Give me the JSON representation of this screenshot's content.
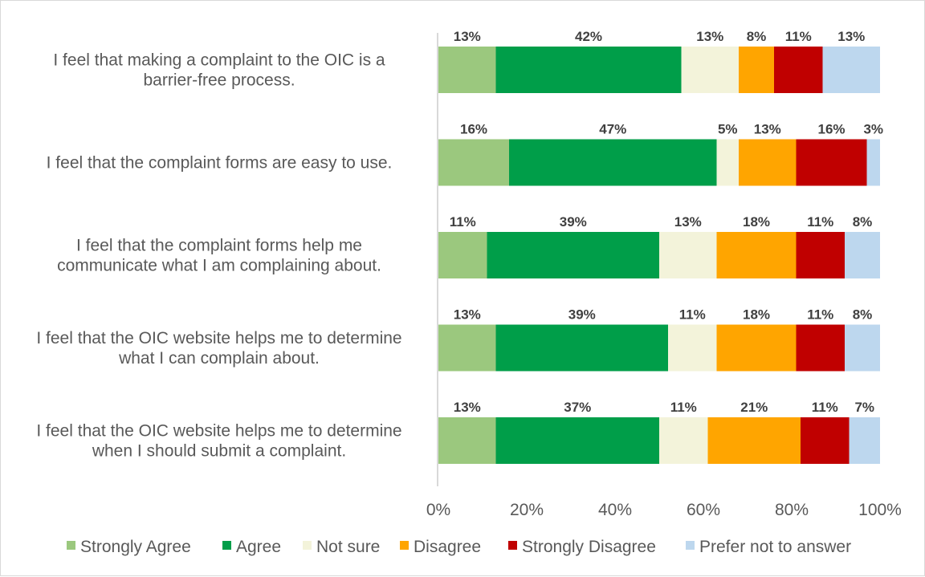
{
  "chart_data": {
    "type": "bar",
    "orientation": "horizontal",
    "stacked": "percent",
    "title": "",
    "xlabel": "",
    "ylabel": "",
    "xlim": [
      0,
      100
    ],
    "x_ticks": [
      "0%",
      "20%",
      "40%",
      "60%",
      "80%",
      "100%"
    ],
    "grid": false,
    "legend_position": "bottom",
    "categories": [
      [
        "I feel that making a complaint to the OIC is a",
        "barrier-free process."
      ],
      [
        "I feel that the complaint forms are easy to use."
      ],
      [
        "I feel that the complaint forms help me",
        "communicate what I am complaining about."
      ],
      [
        "I feel that the OIC website helps me to determine",
        "what I can complain about."
      ],
      [
        "I feel that the OIC website helps me to determine",
        "when I should submit a complaint."
      ]
    ],
    "series": [
      {
        "name": "Strongly Agree",
        "color": "#9BC87E",
        "values": [
          13,
          16,
          11,
          13,
          13
        ]
      },
      {
        "name": "Agree",
        "color": "#009E49",
        "values": [
          42,
          47,
          39,
          39,
          37
        ]
      },
      {
        "name": "Not sure",
        "color": "#F3F3DA",
        "values": [
          13,
          5,
          13,
          11,
          11
        ]
      },
      {
        "name": "Disagree",
        "color": "#FFA500",
        "values": [
          8,
          13,
          18,
          18,
          21
        ]
      },
      {
        "name": "Strongly Disagree",
        "color": "#C00000",
        "values": [
          11,
          16,
          11,
          11,
          11
        ]
      },
      {
        "name": "Prefer not to answer",
        "color": "#BDD7EE",
        "values": [
          13,
          3,
          8,
          8,
          7
        ]
      }
    ],
    "value_suffix": "%"
  }
}
